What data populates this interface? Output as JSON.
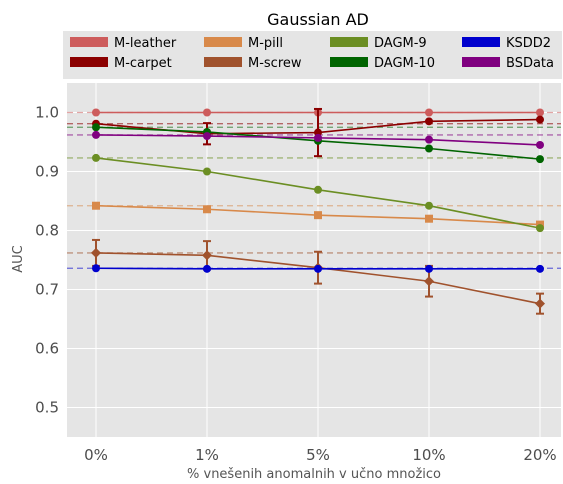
{
  "chart_data": {
    "type": "line",
    "title": "Gaussian AD",
    "xlabel": "% vnešenih anomalnih v učno množico",
    "ylabel": "AUC",
    "categories": [
      "0%",
      "1%",
      "5%",
      "10%",
      "20%"
    ],
    "ylim": [
      0.45,
      1.05
    ],
    "yticks": [
      "0.5",
      "0.6",
      "0.7",
      "0.8",
      "0.9",
      "1.0"
    ],
    "ytick_values": [
      0.5,
      0.6,
      0.7,
      0.8,
      0.9,
      1.0
    ],
    "grid": true,
    "legend_position": "top",
    "series": [
      {
        "name": "M-leather",
        "color": "#cd5c5c",
        "values": [
          1.0,
          1.0,
          1.0,
          1.0,
          1.0
        ],
        "baseline": 1.0,
        "marker": "circle",
        "errors": [
          0,
          0,
          0,
          0,
          0
        ]
      },
      {
        "name": "M-carpet",
        "color": "#8b0000",
        "values": [
          0.981,
          0.964,
          0.966,
          0.985,
          0.988
        ],
        "baseline": 0.981,
        "marker": "circle",
        "errors": [
          0,
          0.018,
          0.04,
          0,
          0
        ]
      },
      {
        "name": "M-pill",
        "color": "#d8894a",
        "values": [
          0.842,
          0.836,
          0.826,
          0.82,
          0.81
        ],
        "baseline": 0.842,
        "marker": "square",
        "errors": [
          0,
          0,
          0,
          0,
          0
        ]
      },
      {
        "name": "M-screw",
        "color": "#a0522d",
        "values": [
          0.762,
          0.758,
          0.737,
          0.714,
          0.676
        ],
        "baseline": 0.762,
        "marker": "diamond",
        "errors": [
          0.022,
          0.024,
          0.027,
          0.026,
          0.017
        ]
      },
      {
        "name": "DAGM-9",
        "color": "#6b8e23",
        "values": [
          0.923,
          0.9,
          0.869,
          0.842,
          0.804
        ],
        "baseline": 0.923,
        "marker": "circle",
        "errors": [
          0,
          0,
          0,
          0,
          0
        ]
      },
      {
        "name": "DAGM-10",
        "color": "#006400",
        "values": [
          0.975,
          0.967,
          0.952,
          0.939,
          0.921
        ],
        "baseline": 0.975,
        "marker": "circle",
        "errors": [
          0,
          0,
          0,
          0,
          0
        ]
      },
      {
        "name": "KSDD2",
        "color": "#0000cd",
        "values": [
          0.736,
          0.735,
          0.735,
          0.735,
          0.735
        ],
        "baseline": 0.736,
        "marker": "circle",
        "errors": [
          0,
          0,
          0,
          0,
          0
        ]
      },
      {
        "name": "BSData",
        "color": "#800080",
        "values": [
          0.962,
          0.96,
          0.957,
          0.954,
          0.945
        ],
        "baseline": 0.962,
        "marker": "circle",
        "errors": [
          0,
          0,
          0,
          0,
          0
        ]
      }
    ]
  }
}
